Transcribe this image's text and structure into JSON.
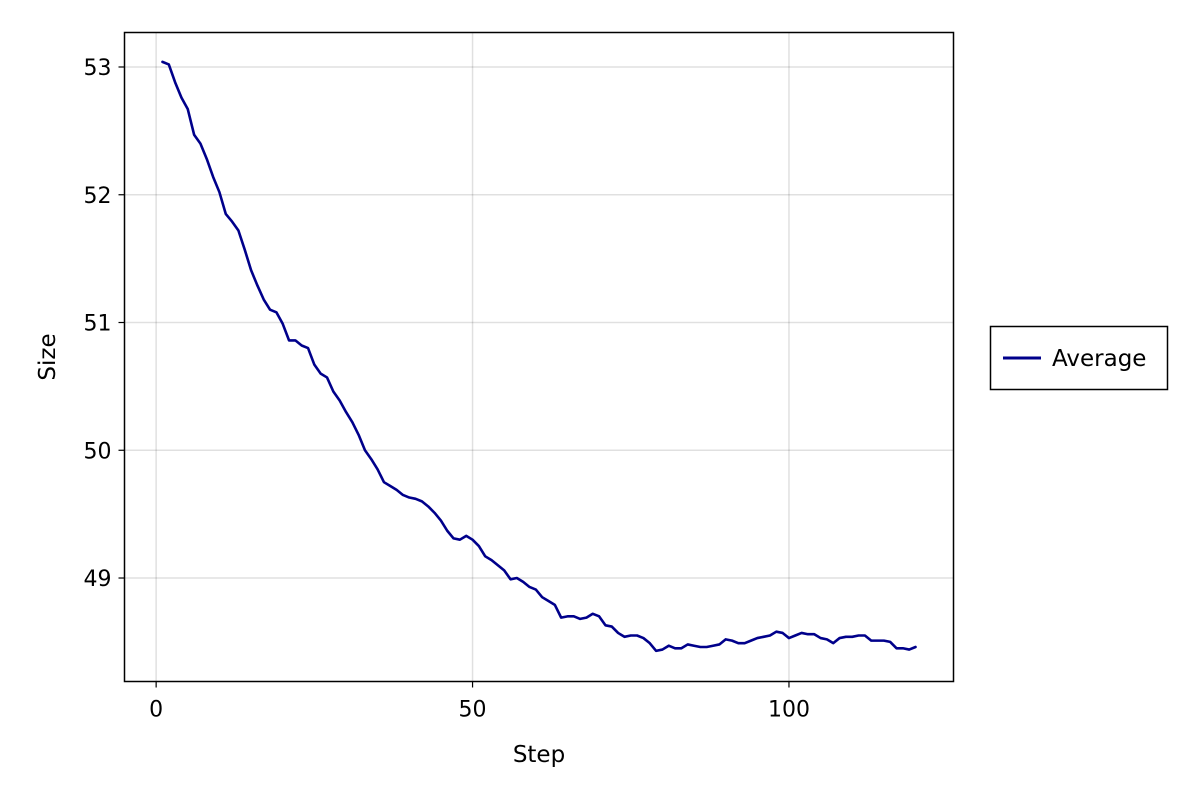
{
  "chart_data": {
    "type": "line",
    "title": "",
    "xlabel": "Step",
    "ylabel": "Size",
    "xlim": [
      -5,
      126
    ],
    "ylim": [
      48.19,
      53.27
    ],
    "xticks": [
      0,
      50,
      100
    ],
    "yticks": [
      49,
      50,
      51,
      52,
      53
    ],
    "xtick_labels": [
      "0",
      "50",
      "100"
    ],
    "ytick_labels": [
      "49",
      "50",
      "51",
      "52",
      "53"
    ],
    "grid": true,
    "legend_position": "right",
    "series": [
      {
        "name": "Average",
        "color": "#00008b",
        "x": [
          1,
          2,
          3,
          4,
          5,
          6,
          7,
          8,
          9,
          10,
          11,
          12,
          13,
          14,
          15,
          16,
          17,
          18,
          19,
          20,
          21,
          22,
          23,
          24,
          25,
          26,
          27,
          28,
          29,
          30,
          31,
          32,
          33,
          34,
          35,
          36,
          37,
          38,
          39,
          40,
          41,
          42,
          43,
          44,
          45,
          46,
          47,
          48,
          49,
          50,
          51,
          52,
          53,
          54,
          55,
          56,
          57,
          58,
          59,
          60,
          61,
          62,
          63,
          64,
          65,
          66,
          67,
          68,
          69,
          70,
          71,
          72,
          73,
          74,
          75,
          76,
          77,
          78,
          79,
          80,
          81,
          82,
          83,
          84,
          85,
          86,
          87,
          88,
          89,
          90,
          91,
          92,
          93,
          94,
          95,
          96,
          97,
          98,
          99,
          100,
          101,
          102,
          103,
          104,
          105,
          106,
          107,
          108,
          109,
          110,
          111,
          112,
          113,
          114,
          115,
          116,
          117,
          118,
          119,
          120
        ],
        "values": [
          53.04,
          53.02,
          52.88,
          52.76,
          52.67,
          52.47,
          52.4,
          52.28,
          52.14,
          52.02,
          51.85,
          51.79,
          51.72,
          51.57,
          51.41,
          51.29,
          51.18,
          51.1,
          51.08,
          50.99,
          50.86,
          50.86,
          50.82,
          50.8,
          50.67,
          50.6,
          50.57,
          50.46,
          50.39,
          50.3,
          50.22,
          50.12,
          50.0,
          49.93,
          49.85,
          49.75,
          49.72,
          49.69,
          49.65,
          49.63,
          49.62,
          49.6,
          49.56,
          49.51,
          49.45,
          49.37,
          49.31,
          49.3,
          49.33,
          49.3,
          49.25,
          49.17,
          49.14,
          49.1,
          49.06,
          48.99,
          49.0,
          48.97,
          48.93,
          48.91,
          48.85,
          48.82,
          48.79,
          48.69,
          48.7,
          48.7,
          48.68,
          48.69,
          48.72,
          48.7,
          48.63,
          48.62,
          48.57,
          48.54,
          48.55,
          48.55,
          48.53,
          48.49,
          48.43,
          48.44,
          48.47,
          48.45,
          48.45,
          48.48,
          48.47,
          48.46,
          48.46,
          48.47,
          48.48,
          48.52,
          48.51,
          48.49,
          48.49,
          48.51,
          48.53,
          48.54,
          48.55,
          48.58,
          48.57,
          48.53,
          48.55,
          48.57,
          48.56,
          48.56,
          48.53,
          48.52,
          48.49,
          48.53,
          48.54,
          48.54,
          48.55,
          48.55,
          48.51,
          48.51,
          48.51,
          48.5,
          48.45,
          48.45,
          48.44,
          48.46
        ]
      }
    ]
  }
}
